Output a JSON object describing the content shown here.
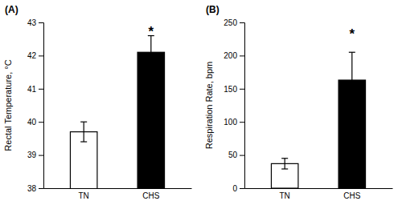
{
  "chart_data": [
    {
      "type": "bar",
      "title": "(A)",
      "ylabel": "Rectal Temperature, °C",
      "categories": [
        "TN",
        "CHS"
      ],
      "values": [
        39.7,
        42.1
      ],
      "errors": [
        0.3,
        0.5
      ],
      "colors": [
        "white",
        "black"
      ],
      "ylim": [
        38,
        43
      ],
      "yticks": [
        38,
        39,
        40,
        41,
        42,
        43
      ],
      "annotations": [
        {
          "text": "*",
          "x": "CHS",
          "y": 42.72
        }
      ]
    },
    {
      "type": "bar",
      "title": "(B)",
      "ylabel": "Respiration Rate, bpm",
      "categories": [
        "TN",
        "CHS"
      ],
      "values": [
        37,
        163
      ],
      "errors": [
        8,
        42
      ],
      "colors": [
        "white",
        "black"
      ],
      "ylim": [
        0,
        250
      ],
      "yticks": [
        0,
        50,
        100,
        150,
        200,
        250
      ],
      "annotations": [
        {
          "text": "*",
          "x": "CHS",
          "y": 233
        }
      ]
    }
  ]
}
